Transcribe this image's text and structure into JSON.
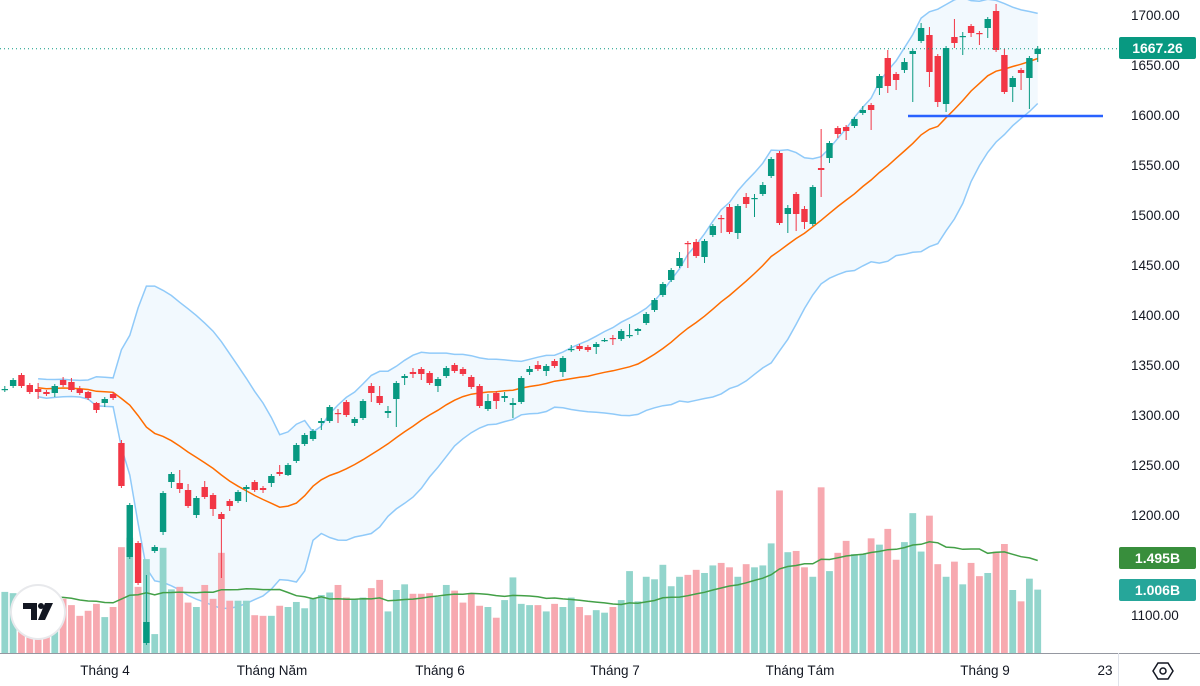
{
  "chart_data": {
    "type": "candlestick",
    "price_axis": {
      "ticks": [
        "1700.00",
        "1650.00",
        "1600.00",
        "1550.00",
        "1500.00",
        "1450.00",
        "1400.00",
        "1350.00",
        "1300.00",
        "1250.00",
        "1200.00",
        "1100.00"
      ],
      "ylim": [
        1100,
        1700
      ]
    },
    "x_axis": {
      "ticks": [
        "Tháng 4",
        "Tháng Năm",
        "Tháng 6",
        "Tháng 7",
        "Tháng Tám",
        "Tháng 9",
        "23"
      ]
    },
    "last_price": "1667.26",
    "volume_ma_label": "1.495B",
    "last_volume_label": "1.006B",
    "horizontal_line": {
      "price": 1600,
      "color": "#2962ff"
    },
    "indicators": {
      "bollinger": {
        "period": 20,
        "stddev": 2,
        "color": "#90caf9"
      },
      "ma": {
        "period": 20,
        "color": "#ff6d00"
      },
      "volume_ma": {
        "period": 20,
        "color": "#43a047"
      }
    },
    "colors": {
      "up": "#089981",
      "down": "#f23645",
      "vol_up": "#92d5cc",
      "vol_down": "#f7a9b0"
    },
    "candles_format": [
      "open",
      "high",
      "low",
      "close",
      "volume_billions"
    ],
    "candles": [
      [
        1327,
        1330,
        1324,
        1327,
        0.97
      ],
      [
        1330,
        1338,
        1328,
        1336,
        0.95
      ],
      [
        1341,
        1343,
        1328,
        1330,
        0.9
      ],
      [
        1331,
        1333,
        1322,
        1324,
        0.85
      ],
      [
        1327,
        1333,
        1317,
        1324,
        0.85
      ],
      [
        1324,
        1326,
        1320,
        1322,
        0.88
      ],
      [
        1323,
        1332,
        1319,
        1330,
        0.8
      ],
      [
        1336,
        1339,
        1329,
        1331,
        0.86
      ],
      [
        1334,
        1338,
        1324,
        1326,
        0.76
      ],
      [
        1327,
        1330,
        1321,
        1323,
        0.59
      ],
      [
        1324,
        1325,
        1316,
        1318,
        0.67
      ],
      [
        1313,
        1314,
        1303,
        1306,
        0.78
      ],
      [
        1313,
        1319,
        1309,
        1317,
        0.57
      ],
      [
        1322,
        1324,
        1316,
        1318,
        0.73
      ],
      [
        1273,
        1276,
        1228,
        1230,
        1.68
      ],
      [
        1159,
        1213,
        1157,
        1211,
        1.83
      ],
      [
        1173,
        1175,
        1131,
        1133,
        1.05
      ],
      [
        1073,
        1141,
        1071,
        1094,
        1.49
      ],
      [
        1165,
        1171,
        1163,
        1169,
        0.3
      ],
      [
        1184,
        1225,
        1181,
        1223,
        1.67
      ],
      [
        1234,
        1244,
        1228,
        1242,
        1.01
      ],
      [
        1233,
        1246,
        1223,
        1227,
        1.05
      ],
      [
        1226,
        1232,
        1208,
        1210,
        0.8
      ],
      [
        1201,
        1220,
        1198,
        1218,
        0.73
      ],
      [
        1229,
        1235,
        1217,
        1219,
        1.08
      ],
      [
        1221,
        1223,
        1200,
        1207,
        0.86
      ],
      [
        1202,
        1204,
        1138,
        1197,
        1.59
      ],
      [
        1215,
        1217,
        1205,
        1210,
        0.83
      ],
      [
        1215,
        1226,
        1213,
        1224,
        0.83
      ],
      [
        1227,
        1231,
        1214,
        1229,
        0.83
      ],
      [
        1234,
        1236,
        1224,
        1226,
        0.6
      ],
      [
        1228,
        1230,
        1223,
        1226,
        0.59
      ],
      [
        1233,
        1242,
        1229,
        1240,
        0.59
      ],
      [
        1244,
        1251,
        1240,
        1242,
        0.75
      ],
      [
        1241,
        1253,
        1240,
        1251,
        0.73
      ],
      [
        1255,
        1273,
        1253,
        1271,
        0.81
      ],
      [
        1272,
        1283,
        1270,
        1281,
        0.71
      ],
      [
        1277,
        1287,
        1275,
        1285,
        0.87
      ],
      [
        1293,
        1298,
        1286,
        1295,
        0.92
      ],
      [
        1295,
        1311,
        1293,
        1309,
        0.96
      ],
      [
        1303,
        1307,
        1293,
        1302,
        1.08
      ],
      [
        1314,
        1316,
        1299,
        1301,
        0.88
      ],
      [
        1293,
        1299,
        1290,
        1297,
        0.85
      ],
      [
        1298,
        1317,
        1296,
        1315,
        0.88
      ],
      [
        1330,
        1333,
        1314,
        1323,
        1.03
      ],
      [
        1320,
        1330,
        1311,
        1313,
        1.16
      ],
      [
        1303,
        1310,
        1298,
        1305,
        0.66
      ],
      [
        1317,
        1335,
        1289,
        1333,
        1.0
      ],
      [
        1338,
        1342,
        1331,
        1340,
        1.09
      ],
      [
        1344,
        1348,
        1338,
        1342,
        0.94
      ],
      [
        1347,
        1349,
        1336,
        1342,
        0.94
      ],
      [
        1343,
        1345,
        1331,
        1333,
        0.95
      ],
      [
        1330,
        1339,
        1324,
        1337,
        0.89
      ],
      [
        1340,
        1350,
        1338,
        1348,
        1.08
      ],
      [
        1351,
        1353,
        1343,
        1345,
        0.99
      ],
      [
        1347,
        1349,
        1340,
        1342,
        0.8
      ],
      [
        1339,
        1341,
        1327,
        1329,
        0.95
      ],
      [
        1330,
        1332,
        1308,
        1310,
        0.75
      ],
      [
        1307,
        1322,
        1305,
        1315,
        0.73
      ],
      [
        1323,
        1325,
        1307,
        1315,
        0.56
      ],
      [
        1318,
        1324,
        1314,
        1320,
        0.84
      ],
      [
        1311,
        1318,
        1298,
        1313,
        1.2
      ],
      [
        1314,
        1340,
        1312,
        1338,
        0.78
      ],
      [
        1344,
        1350,
        1341,
        1347,
        0.76
      ],
      [
        1351,
        1355,
        1345,
        1347,
        0.76
      ],
      [
        1345,
        1352,
        1340,
        1350,
        0.66
      ],
      [
        1355,
        1357,
        1348,
        1350,
        0.78
      ],
      [
        1344,
        1360,
        1339,
        1358,
        0.73
      ],
      [
        1366,
        1371,
        1364,
        1367,
        0.88
      ],
      [
        1370,
        1372,
        1365,
        1367,
        0.73
      ],
      [
        1369,
        1371,
        1364,
        1366,
        0.6
      ],
      [
        1369,
        1374,
        1362,
        1372,
        0.68
      ],
      [
        1375,
        1378,
        1374,
        1376,
        0.64
      ],
      [
        1378,
        1381,
        1371,
        1377,
        0.73
      ],
      [
        1377,
        1387,
        1375,
        1385,
        0.84
      ],
      [
        1380,
        1392,
        1378,
        1381,
        1.3
      ],
      [
        1385,
        1388,
        1381,
        1387,
        0.82
      ],
      [
        1393,
        1404,
        1391,
        1402,
        1.21
      ],
      [
        1406,
        1418,
        1404,
        1416,
        1.17
      ],
      [
        1421,
        1434,
        1419,
        1432,
        1.4
      ],
      [
        1436,
        1448,
        1434,
        1446,
        1.06
      ],
      [
        1450,
        1464,
        1448,
        1458,
        1.21
      ],
      [
        1473,
        1475,
        1448,
        1472,
        1.24
      ],
      [
        1474,
        1477,
        1458,
        1460,
        1.32
      ],
      [
        1459,
        1477,
        1453,
        1475,
        1.27
      ],
      [
        1481,
        1492,
        1479,
        1490,
        1.39
      ],
      [
        1498,
        1501,
        1483,
        1497,
        1.43
      ],
      [
        1509,
        1512,
        1482,
        1484,
        1.36
      ],
      [
        1483,
        1512,
        1477,
        1510,
        1.21
      ],
      [
        1519,
        1523,
        1508,
        1512,
        1.41
      ],
      [
        1517,
        1522,
        1499,
        1518,
        1.36
      ],
      [
        1522,
        1534,
        1520,
        1531,
        1.39
      ],
      [
        1540,
        1559,
        1538,
        1557,
        1.74
      ],
      [
        1563,
        1565,
        1491,
        1493,
        2.58
      ],
      [
        1502,
        1511,
        1483,
        1508,
        1.6
      ],
      [
        1522,
        1524,
        1485,
        1502,
        1.62
      ],
      [
        1507,
        1510,
        1487,
        1494,
        1.36
      ],
      [
        1492,
        1531,
        1490,
        1529,
        1.21
      ],
      [
        1548,
        1587,
        1519,
        1546,
        2.63
      ],
      [
        1558,
        1575,
        1553,
        1573,
        1.3
      ],
      [
        1588,
        1590,
        1578,
        1582,
        1.59
      ],
      [
        1589,
        1591,
        1576,
        1585,
        1.78
      ],
      [
        1590,
        1599,
        1588,
        1597,
        1.57
      ],
      [
        1603,
        1610,
        1601,
        1606,
        1.57
      ],
      [
        1611,
        1613,
        1586,
        1606,
        1.82
      ],
      [
        1628,
        1642,
        1621,
        1640,
        1.72
      ],
      [
        1658,
        1666,
        1623,
        1630,
        1.97
      ],
      [
        1642,
        1644,
        1626,
        1636,
        1.48
      ],
      [
        1646,
        1658,
        1643,
        1654,
        1.76
      ],
      [
        1662,
        1667,
        1614,
        1665,
        2.22
      ],
      [
        1675,
        1693,
        1673,
        1688,
        1.61
      ],
      [
        1681,
        1689,
        1629,
        1644,
        2.18
      ],
      [
        1660,
        1662,
        1609,
        1614,
        1.41
      ],
      [
        1612,
        1670,
        1604,
        1668,
        1.21
      ],
      [
        1679,
        1697,
        1668,
        1673,
        1.45
      ],
      [
        1679,
        1684,
        1661,
        1680,
        1.09
      ],
      [
        1690,
        1692,
        1679,
        1683,
        1.43
      ],
      [
        1683,
        1685,
        1671,
        1682,
        1.22
      ],
      [
        1688,
        1699,
        1678,
        1697,
        1.27
      ],
      [
        1705,
        1712,
        1664,
        1666,
        1.61
      ],
      [
        1661,
        1667,
        1622,
        1624,
        1.73
      ],
      [
        1629,
        1640,
        1614,
        1638,
        1.0
      ],
      [
        1646,
        1648,
        1626,
        1643,
        0.82
      ],
      [
        1638,
        1660,
        1607,
        1658,
        1.18
      ],
      [
        1662,
        1670,
        1654,
        1667.26,
        1.006
      ]
    ]
  },
  "icons": {
    "settings": "settings-hexagon-icon",
    "logo": "tradingview-logo"
  }
}
